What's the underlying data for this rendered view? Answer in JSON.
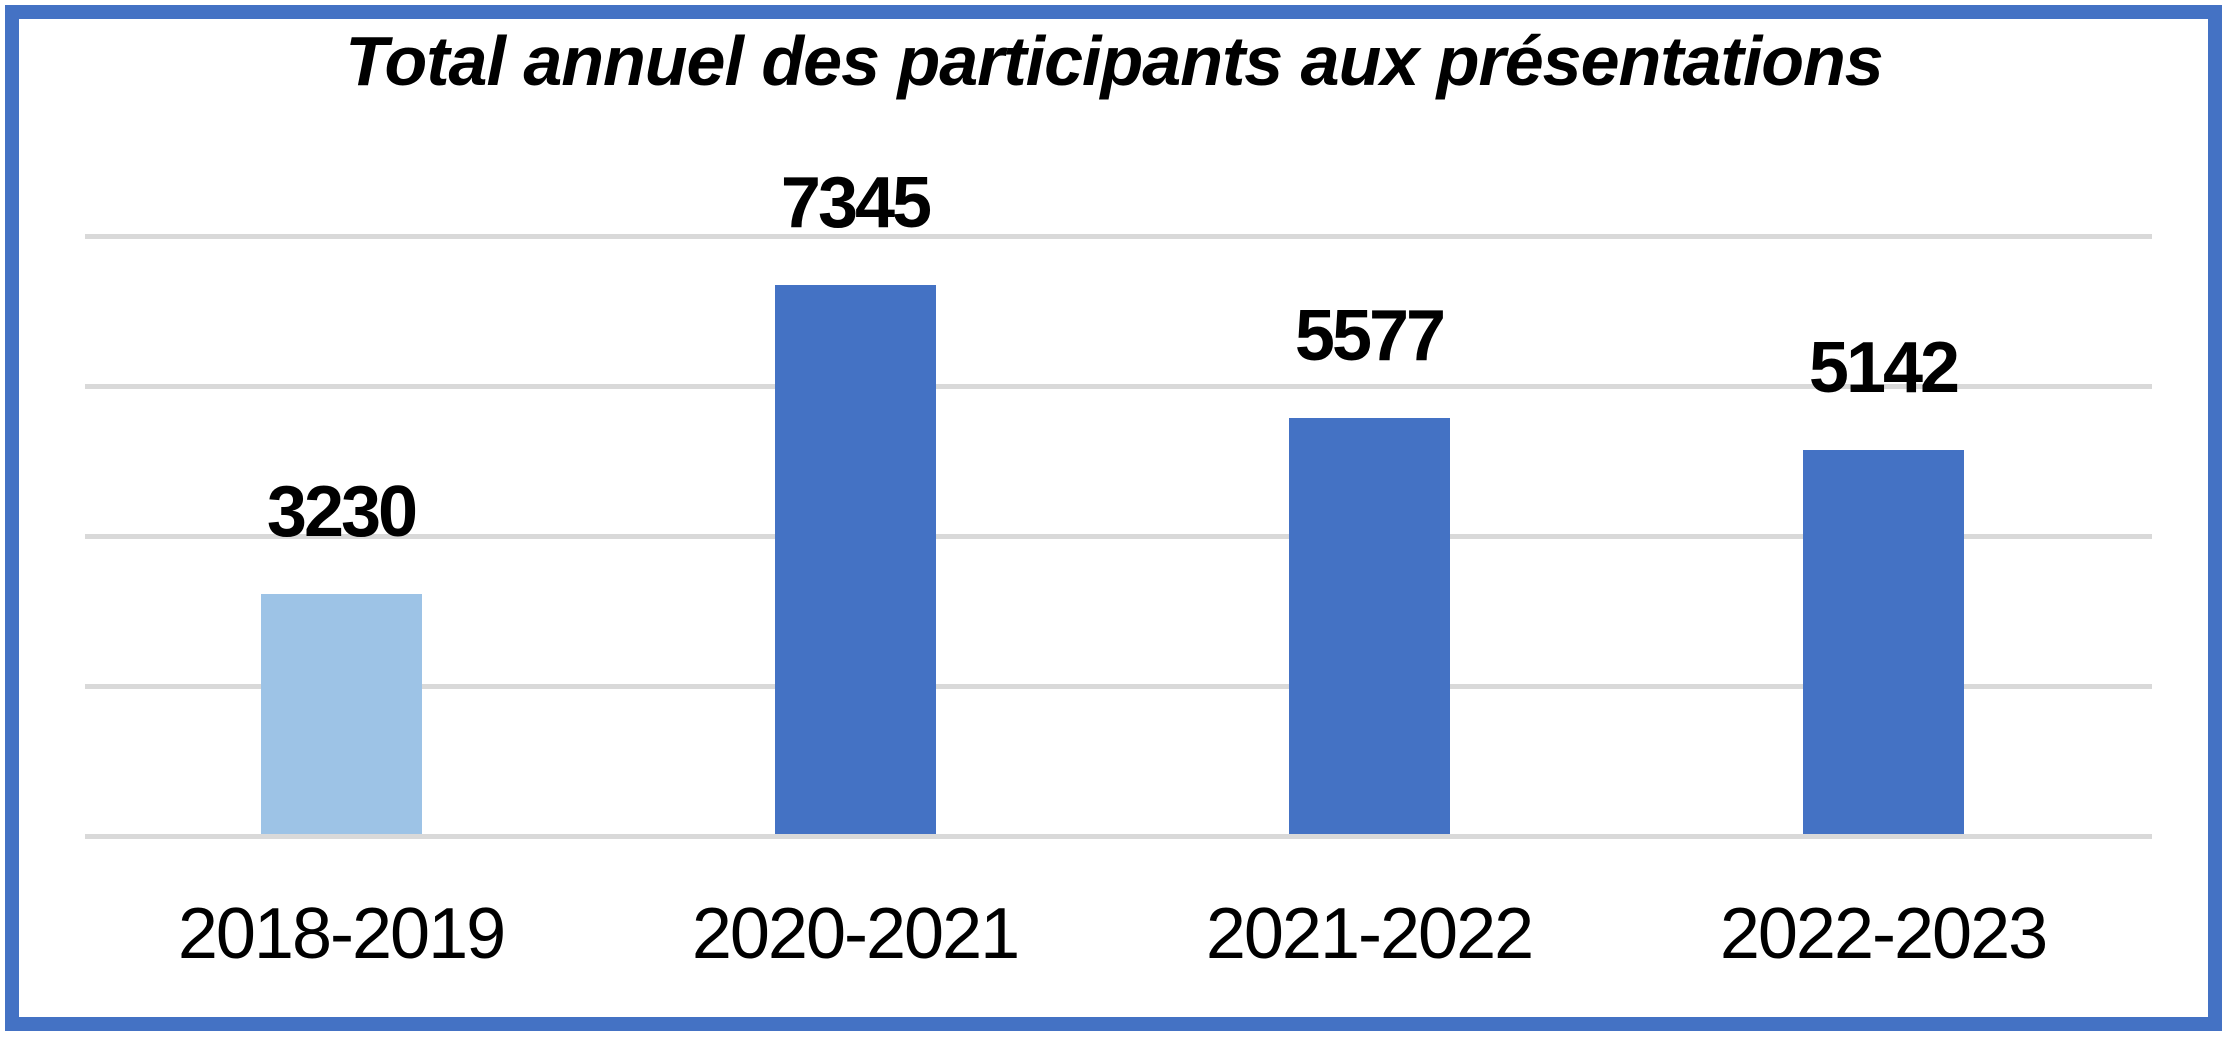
{
  "frame": {
    "border_color": "#4472C4",
    "background_color": "#FFFFFF"
  },
  "colors": {
    "gridline": "#D9D9D9",
    "text": "#000000",
    "accent_blue": "#4472C4",
    "light_blue": "#9DC3E6"
  },
  "chart_data": {
    "type": "bar",
    "title": "Total annuel des participants aux présentations",
    "categories": [
      "2018-2019",
      "2020-2021",
      "2021-2022",
      "2022-2023"
    ],
    "values": [
      3230,
      7345,
      5577,
      5142
    ],
    "data_labels": [
      "3230",
      "7345",
      "5577",
      "5142"
    ],
    "bar_colors": [
      "#9DC3E6",
      "#4472C4",
      "#4472C4",
      "#4472C4"
    ],
    "xlabel": "",
    "ylabel": "",
    "ylim": [
      0,
      8000
    ],
    "gridline_interval": 2000,
    "grid": true,
    "legend_position": "none",
    "y_tick_labels_visible": false
  }
}
